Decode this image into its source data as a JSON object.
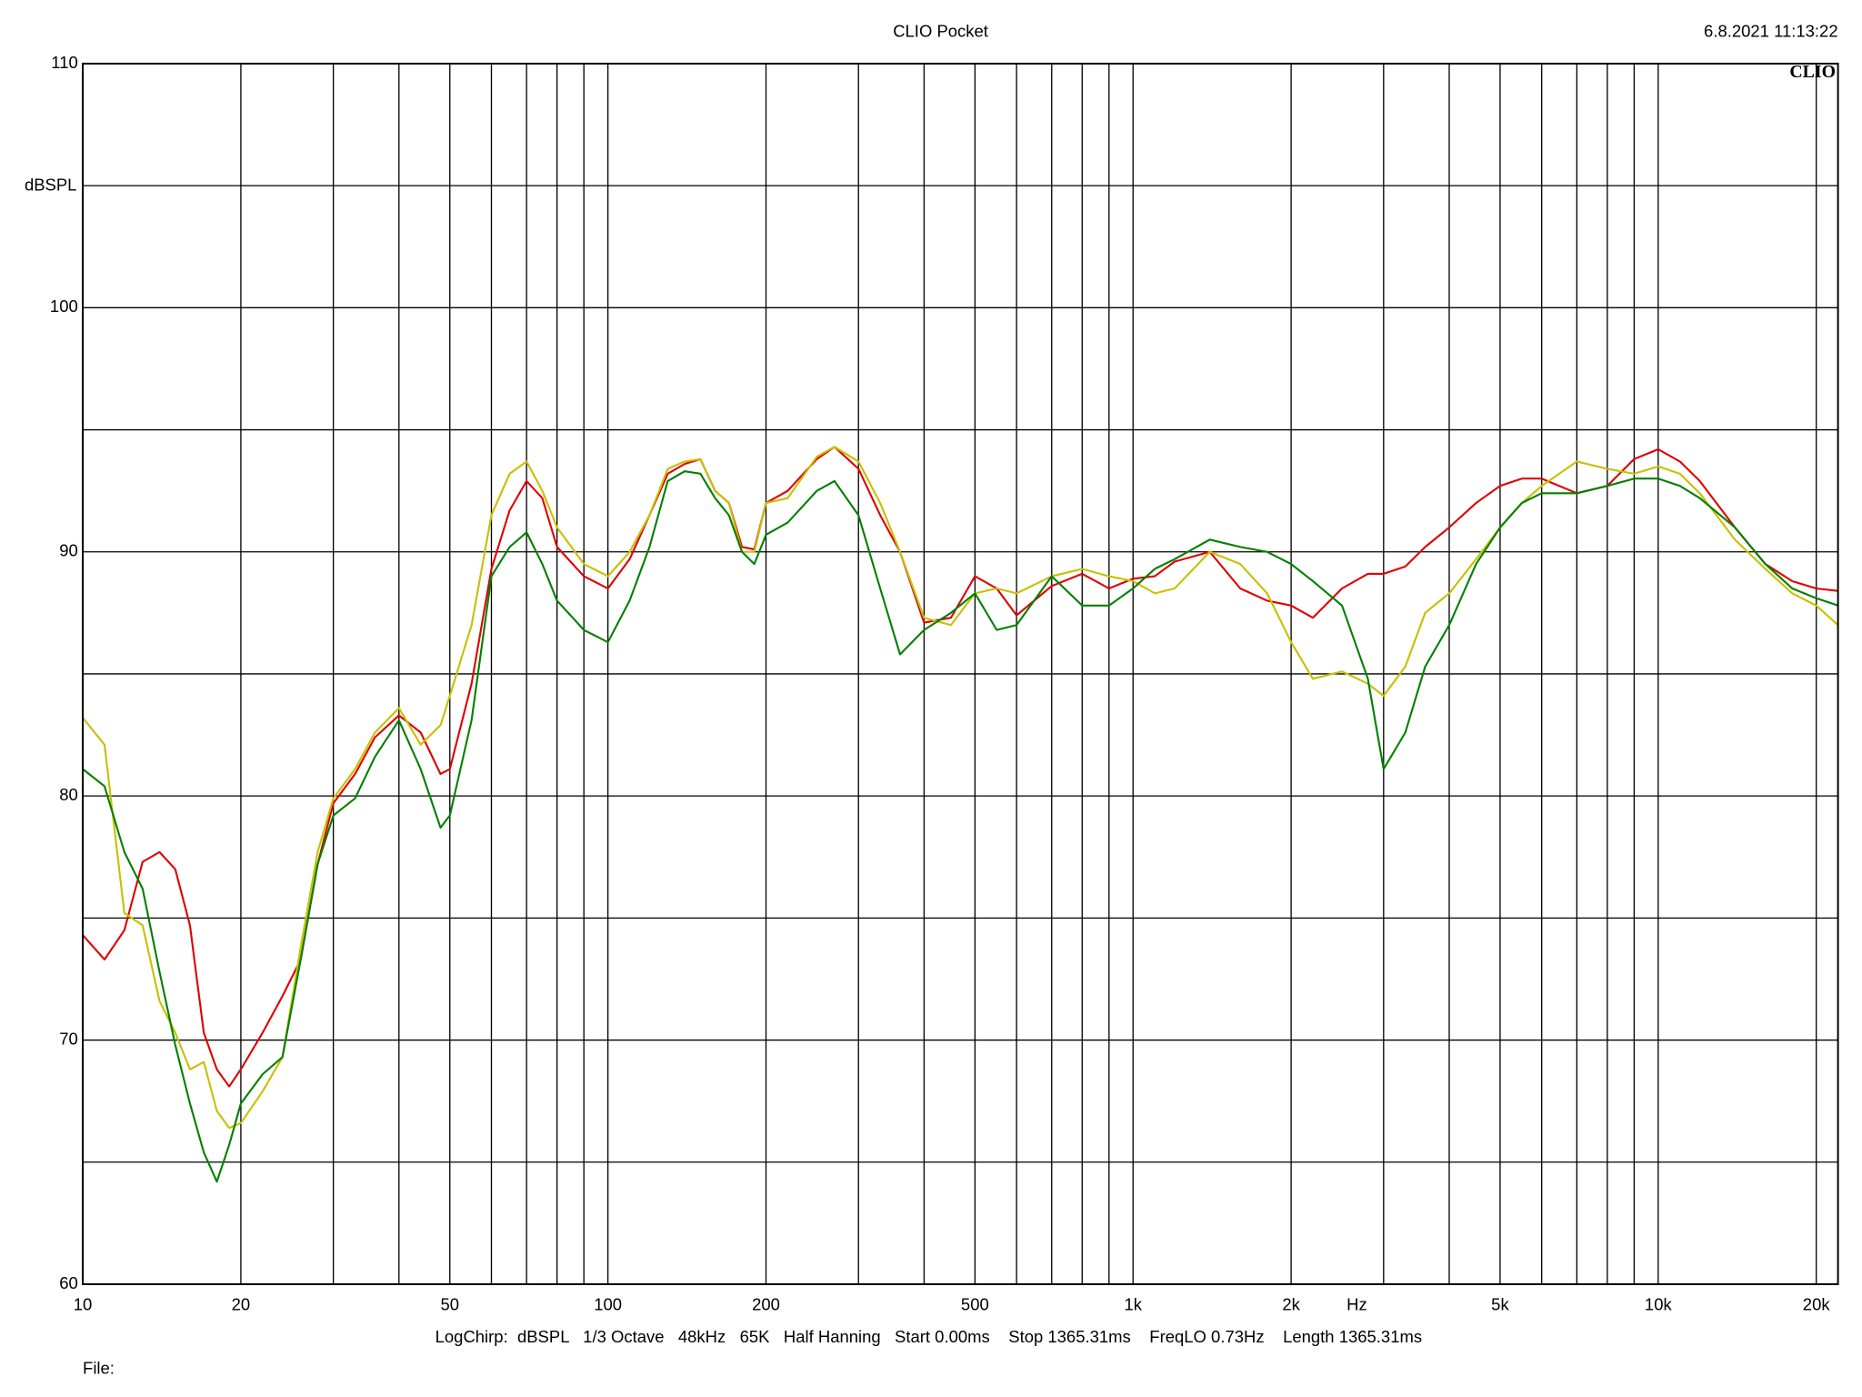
{
  "chart_data": {
    "type": "line",
    "title": "CLIO Pocket",
    "timestamp": "6.8.2021 11:13:22",
    "logo": "CLIO",
    "y_label": "dBSPL",
    "x_label": "Hz",
    "footer": "LogChirp:  dBSPL   1/3 Octave   48kHz   65K   Half Hanning   Start 0.00ms    Stop 1365.31ms    FreqLO 0.73Hz    Length 1365.31ms",
    "file_label": "File:",
    "x_log": true,
    "grid": true,
    "xlim": [
      10,
      22000
    ],
    "ylim": [
      60,
      110
    ],
    "xticks": [
      10,
      20,
      50,
      100,
      200,
      500,
      {
        "value": 1000,
        "label": "1k"
      },
      {
        "value": 2000,
        "label": "2k"
      },
      {
        "value": 5000,
        "label": "5k"
      },
      {
        "value": 10000,
        "label": "10k"
      },
      {
        "value": 20000,
        "label": "20k"
      }
    ],
    "minor_xticks": [
      30,
      40,
      60,
      70,
      80,
      90,
      300,
      400,
      600,
      700,
      800,
      900,
      3000,
      4000,
      6000,
      7000,
      8000,
      9000
    ],
    "yticks": [
      60,
      70,
      80,
      90,
      100,
      110
    ],
    "minor_yticks": [
      65,
      75,
      85,
      95,
      105
    ],
    "x": [
      10,
      11,
      12,
      13,
      14,
      15,
      16,
      17,
      18,
      19,
      20,
      22,
      24,
      26,
      28,
      30,
      33,
      36,
      40,
      44,
      48,
      50,
      55,
      60,
      65,
      70,
      75,
      80,
      90,
      100,
      110,
      120,
      130,
      140,
      150,
      160,
      170,
      180,
      190,
      200,
      220,
      250,
      270,
      300,
      330,
      360,
      400,
      450,
      500,
      550,
      600,
      700,
      800,
      900,
      1000,
      1100,
      1200,
      1400,
      1600,
      1800,
      2000,
      2200,
      2500,
      2800,
      3000,
      3300,
      3600,
      4000,
      4500,
      5000,
      5500,
      6000,
      7000,
      8000,
      9000,
      10000,
      11000,
      12000,
      14000,
      16000,
      18000,
      20000,
      22000
    ],
    "series": [
      {
        "color": "#e00000",
        "values": [
          74.3,
          73.3,
          74.5,
          77.3,
          77.7,
          77.0,
          74.7,
          70.3,
          68.8,
          68.1,
          68.8,
          70.3,
          71.8,
          73.3,
          77.2,
          79.7,
          80.9,
          82.4,
          83.3,
          82.6,
          80.9,
          81.1,
          84.6,
          89.3,
          91.7,
          92.9,
          92.2,
          90.2,
          89.0,
          88.5,
          89.7,
          91.5,
          93.2,
          93.6,
          93.8,
          92.5,
          92.0,
          90.2,
          90.1,
          92.0,
          92.5,
          93.8,
          94.3,
          93.4,
          91.5,
          90.0,
          87.1,
          87.3,
          89.0,
          88.5,
          87.4,
          88.6,
          89.1,
          88.5,
          88.9,
          89.0,
          89.6,
          90.0,
          88.5,
          88.0,
          87.8,
          87.3,
          88.5,
          89.1,
          89.1,
          89.4,
          90.2,
          91.0,
          92.0,
          92.7,
          93.0,
          93.0,
          92.4,
          92.7,
          93.8,
          94.2,
          93.7,
          92.9,
          91.0,
          89.5,
          88.8,
          88.5,
          88.4
        ]
      },
      {
        "color": "#c8c000",
        "values": [
          83.2,
          82.1,
          75.2,
          74.7,
          71.6,
          70.3,
          68.8,
          69.1,
          67.1,
          66.4,
          66.6,
          67.9,
          69.3,
          73.8,
          77.7,
          79.9,
          81.1,
          82.6,
          83.6,
          82.1,
          82.9,
          84.1,
          87.0,
          91.5,
          93.2,
          93.7,
          92.5,
          91.0,
          89.5,
          89.0,
          90.0,
          91.5,
          93.4,
          93.7,
          93.8,
          92.5,
          92.0,
          90.0,
          90.0,
          92.0,
          92.2,
          93.9,
          94.3,
          93.7,
          92.0,
          90.0,
          87.3,
          87.0,
          88.3,
          88.5,
          88.3,
          89.0,
          89.3,
          89.0,
          88.8,
          88.3,
          88.5,
          90.0,
          89.5,
          88.3,
          86.3,
          84.8,
          85.1,
          84.6,
          84.1,
          85.3,
          87.5,
          88.3,
          89.7,
          91.0,
          92.0,
          92.7,
          93.7,
          93.4,
          93.2,
          93.5,
          93.2,
          92.4,
          90.5,
          89.3,
          88.3,
          87.8,
          87.0
        ]
      },
      {
        "color": "#008000",
        "values": [
          81.1,
          80.4,
          77.7,
          76.2,
          72.8,
          69.8,
          67.4,
          65.4,
          64.2,
          65.7,
          67.4,
          68.6,
          69.3,
          73.3,
          77.2,
          79.2,
          79.9,
          81.6,
          83.1,
          81.1,
          78.7,
          79.2,
          83.1,
          89.0,
          90.2,
          90.8,
          89.5,
          88.0,
          86.8,
          86.3,
          88.0,
          90.2,
          92.9,
          93.3,
          93.2,
          92.2,
          91.5,
          90.0,
          89.5,
          90.7,
          91.2,
          92.5,
          92.9,
          91.5,
          88.5,
          85.8,
          86.8,
          87.5,
          88.3,
          86.8,
          87.0,
          89.0,
          87.8,
          87.8,
          88.5,
          89.3,
          89.7,
          90.5,
          90.2,
          90.0,
          89.5,
          88.8,
          87.8,
          84.8,
          81.1,
          82.6,
          85.3,
          87.0,
          89.5,
          91.0,
          92.0,
          92.4,
          92.4,
          92.7,
          93.0,
          93.0,
          92.7,
          92.2,
          91.0,
          89.5,
          88.5,
          88.1,
          87.8
        ]
      }
    ]
  }
}
